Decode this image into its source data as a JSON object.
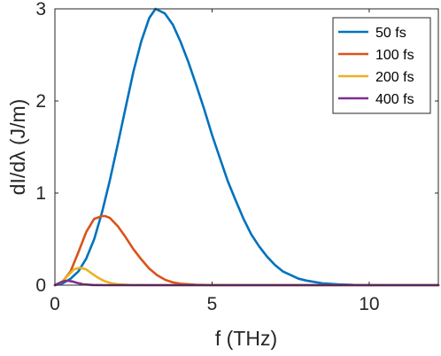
{
  "chart_data": {
    "type": "line",
    "xlabel": "f (THz)",
    "ylabel": "dI/dλ (J/m)",
    "xlim": [
      0,
      12.2
    ],
    "ylim": [
      0,
      3
    ],
    "xticks": [
      0,
      5,
      10
    ],
    "yticks": [
      0,
      1,
      2,
      3
    ],
    "xtick_labels": [
      "0",
      "5",
      "10"
    ],
    "ytick_labels": [
      "0",
      "1",
      "2",
      "3"
    ],
    "grid": false,
    "legend_position": "top-right",
    "series": [
      {
        "name": "50 fs",
        "color": "#0072BD",
        "x": [
          0,
          0.25,
          0.5,
          0.75,
          1.0,
          1.25,
          1.5,
          1.75,
          2.0,
          2.25,
          2.5,
          2.75,
          3.0,
          3.2,
          3.5,
          3.75,
          4.0,
          4.25,
          4.5,
          4.75,
          5.0,
          5.25,
          5.5,
          5.75,
          6.0,
          6.25,
          6.5,
          6.75,
          7.0,
          7.25,
          7.5,
          7.75,
          8.0,
          8.5,
          9.0,
          9.5,
          10.0,
          10.5,
          11.0,
          12.2
        ],
        "y": [
          0,
          0.02,
          0.07,
          0.15,
          0.29,
          0.5,
          0.79,
          1.14,
          1.53,
          1.93,
          2.32,
          2.65,
          2.9,
          3.0,
          2.95,
          2.83,
          2.64,
          2.42,
          2.17,
          1.91,
          1.63,
          1.38,
          1.13,
          0.92,
          0.72,
          0.55,
          0.42,
          0.31,
          0.22,
          0.15,
          0.11,
          0.07,
          0.05,
          0.02,
          0.01,
          0.003,
          0.001,
          0,
          0,
          0
        ]
      },
      {
        "name": "100 fs",
        "color": "#D95319",
        "x": [
          0,
          0.25,
          0.5,
          0.75,
          1.0,
          1.25,
          1.5,
          1.6,
          1.75,
          2.0,
          2.25,
          2.5,
          2.75,
          3.0,
          3.25,
          3.5,
          3.75,
          4.0,
          4.5,
          5.0,
          6.0,
          12.2
        ],
        "y": [
          0,
          0.04,
          0.15,
          0.36,
          0.58,
          0.72,
          0.75,
          0.75,
          0.73,
          0.64,
          0.52,
          0.39,
          0.28,
          0.18,
          0.11,
          0.06,
          0.03,
          0.015,
          0.004,
          0.001,
          0,
          0
        ]
      },
      {
        "name": "200 fs",
        "color": "#EDB120",
        "x": [
          0,
          0.2,
          0.4,
          0.6,
          0.8,
          1.0,
          1.2,
          1.4,
          1.6,
          1.8,
          2.0,
          2.4,
          3.0,
          12.2
        ],
        "y": [
          0,
          0.03,
          0.1,
          0.17,
          0.19,
          0.17,
          0.12,
          0.075,
          0.04,
          0.02,
          0.01,
          0.002,
          0,
          0
        ]
      },
      {
        "name": "400 fs",
        "color": "#7E2F8E",
        "x": [
          0,
          0.15,
          0.3,
          0.4,
          0.55,
          0.7,
          0.9,
          1.2,
          1.6,
          12.2
        ],
        "y": [
          0,
          0.025,
          0.045,
          0.048,
          0.04,
          0.025,
          0.01,
          0.002,
          0,
          0
        ]
      }
    ]
  }
}
